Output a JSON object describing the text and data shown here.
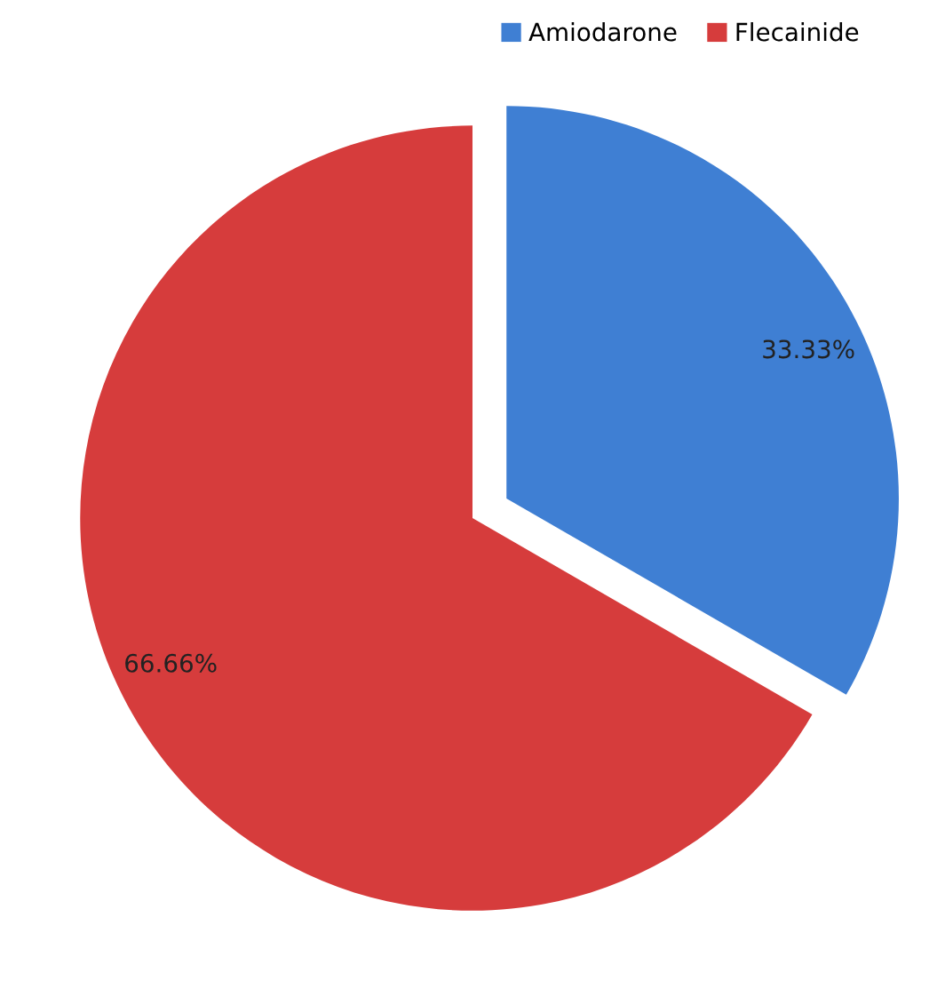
{
  "chart_data": {
    "type": "pie",
    "categories": [
      "Amiodarone",
      "Flecainide"
    ],
    "values": [
      33.33,
      66.66
    ],
    "colors": [
      "#3f7fd3",
      "#d63c3c"
    ],
    "value_labels": [
      "33.33%",
      "66.66%"
    ],
    "legend": "top"
  }
}
